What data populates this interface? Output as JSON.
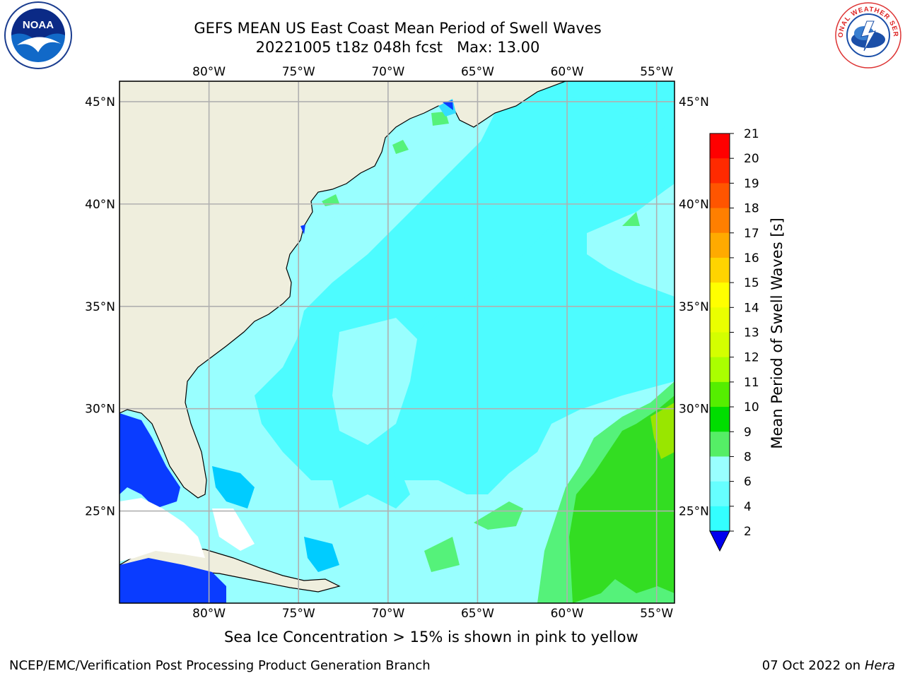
{
  "header": {
    "title_line1": "GEFS MEAN US East Coast Mean Period of Swell Waves",
    "title_line2": "20221005 t18z 048h fcst   Max: 13.00"
  },
  "map": {
    "lon_ticks_top": [
      "80°W",
      "75°W",
      "70°W",
      "65°W",
      "60°W",
      "55°W"
    ],
    "lon_ticks_bottom": [
      "80°W",
      "75°W",
      "70°W",
      "65°W",
      "60°W",
      "55°W"
    ],
    "lat_ticks_left": [
      "45°N",
      "40°N",
      "35°N",
      "30°N",
      "25°N"
    ],
    "lat_ticks_right": [
      "45°N",
      "40°N",
      "35°N",
      "30°N",
      "25°N"
    ],
    "lon_range": [
      -85,
      -54
    ],
    "lat_range": [
      20.5,
      46
    ],
    "land_color": "#efeedd",
    "grid_color": "#b0b0b0"
  },
  "colorbar": {
    "label": "Mean Period of Swell Waves [s]",
    "ticks": [
      "21",
      "20",
      "19",
      "18",
      "17",
      "16",
      "15",
      "14",
      "13",
      "12",
      "11",
      "10",
      "9",
      "8",
      "6",
      "4",
      "2"
    ],
    "colors": [
      "#ff0000",
      "#ff2a00",
      "#ff5500",
      "#ff7f00",
      "#ffaa00",
      "#ffd400",
      "#ffff00",
      "#eaff00",
      "#d4ff00",
      "#aaff00",
      "#55ee00",
      "#00dd00",
      "#55ee66",
      "#99ffff",
      "#66ffff",
      "#33ffff",
      "#00ddff",
      "#0088ff"
    ],
    "under_color": "#0000ee"
  },
  "logos": {
    "noaa_text": "NOAA",
    "nws_text": "NATIONAL WEATHER SERVICE"
  },
  "footer": {
    "note": "Sea Ice Concentration > 15% is shown in pink to yellow",
    "left": "NCEP/EMC/Verification Post Processing Product Generation Branch",
    "right_date": "07 Oct 2022 on ",
    "right_host": "Hera"
  }
}
